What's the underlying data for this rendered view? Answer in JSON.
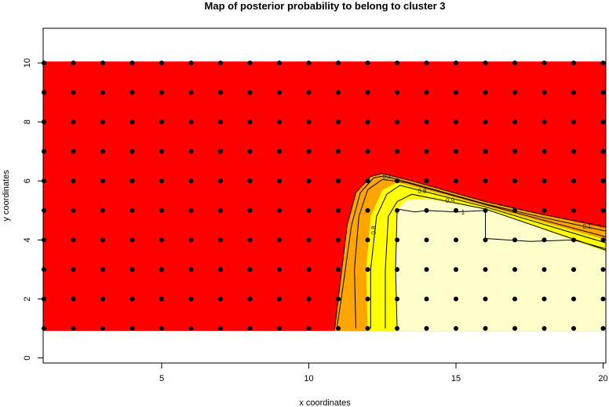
{
  "chart_data": {
    "type": "heatmap",
    "title": "Map of posterior probability to belong to cluster  3",
    "xlabel": "x coordinates",
    "ylabel": "y coordinates",
    "xlim": [
      1,
      20
    ],
    "ylim": [
      -0.17,
      11.2
    ],
    "xticks": [
      5,
      10,
      15,
      20
    ],
    "yticks": [
      0,
      2,
      4,
      6,
      8,
      10
    ],
    "grid_points": {
      "x": [
        1,
        2,
        3,
        4,
        5,
        6,
        7,
        8,
        9,
        10,
        11,
        12,
        13,
        14,
        15,
        16,
        17,
        18,
        19,
        20
      ],
      "y": [
        1,
        2,
        3,
        4,
        5,
        6,
        7,
        8,
        9,
        10
      ]
    },
    "colors": {
      "low": "#FF0000",
      "mid": "#FFA500",
      "high": "#FFFF00",
      "top": "#FFFFCC",
      "points": "#000000",
      "contours": "#000000"
    },
    "regions": [
      {
        "level": "low",
        "polygon": [
          [
            0.97,
            0.92
          ],
          [
            20.1,
            0.92
          ],
          [
            20.1,
            10.05
          ],
          [
            0.97,
            10.05
          ]
        ]
      },
      {
        "level": "mid",
        "polygon": [
          [
            10.9,
            1
          ],
          [
            11.0,
            2
          ],
          [
            11.3,
            4.5
          ],
          [
            11.6,
            5.6
          ],
          [
            12.1,
            6.15
          ],
          [
            12.5,
            6.25
          ],
          [
            13.5,
            6.0
          ],
          [
            16,
            5.3
          ],
          [
            18,
            4.85
          ],
          [
            20.1,
            4.4
          ],
          [
            20.1,
            0.92
          ],
          [
            10.88,
            0.92
          ]
        ]
      },
      {
        "level": "high",
        "polygon": [
          [
            12.0,
            0.92
          ],
          [
            11.95,
            3
          ],
          [
            12.1,
            4.8
          ],
          [
            12.5,
            5.7
          ],
          [
            13,
            5.95
          ],
          [
            16,
            5.15
          ],
          [
            20.1,
            4.0
          ],
          [
            20.1,
            0.92
          ]
        ]
      },
      {
        "level": "top",
        "polygon": [
          [
            13.0,
            0.92
          ],
          [
            12.95,
            3
          ],
          [
            13.0,
            5.05
          ],
          [
            13.3,
            5.35
          ],
          [
            14,
            5.4
          ],
          [
            16,
            5.05
          ],
          [
            20.1,
            3.6
          ],
          [
            20.1,
            0.92
          ]
        ]
      }
    ],
    "contours": [
      {
        "level": 0.1,
        "points": [
          [
            10.88,
            1
          ],
          [
            11.0,
            2
          ],
          [
            11.3,
            4.5
          ],
          [
            11.6,
            5.6
          ],
          [
            12.1,
            6.15
          ],
          [
            12.5,
            6.25
          ],
          [
            13.5,
            6.0
          ],
          [
            16,
            5.3
          ],
          [
            18,
            4.85
          ],
          [
            20.1,
            4.45
          ]
        ]
      },
      {
        "level": 0.2,
        "points": [
          [
            10.95,
            1
          ],
          [
            11.1,
            2
          ],
          [
            11.45,
            4.5
          ],
          [
            11.75,
            5.6
          ],
          [
            12.2,
            6.1
          ],
          [
            12.55,
            6.17
          ],
          [
            13.5,
            5.92
          ],
          [
            16,
            5.22
          ],
          [
            18,
            4.75
          ],
          [
            20.1,
            4.3
          ]
        ]
      },
      {
        "level": 0.5,
        "points": [
          [
            11.6,
            1
          ],
          [
            11.55,
            3
          ],
          [
            11.7,
            4.8
          ],
          [
            12.0,
            5.7
          ],
          [
            12.5,
            6.05
          ],
          [
            13.3,
            5.95
          ],
          [
            16,
            5.2
          ],
          [
            20.1,
            4.1
          ]
        ]
      },
      {
        "level": 0.8,
        "points": [
          [
            12.1,
            1
          ],
          [
            12.1,
            3
          ],
          [
            12.3,
            4.8
          ],
          [
            12.65,
            5.55
          ],
          [
            13.1,
            5.85
          ],
          [
            16,
            5.12
          ],
          [
            20.1,
            3.9
          ]
        ]
      },
      {
        "level": 0.9,
        "points": [
          [
            12.6,
            1
          ],
          [
            12.6,
            3
          ],
          [
            12.7,
            4.8
          ],
          [
            13.0,
            5.3
          ],
          [
            13.5,
            5.55
          ],
          [
            16,
            5.05
          ],
          [
            20.1,
            3.65
          ]
        ]
      },
      {
        "level": 1,
        "points": [
          [
            13.0,
            1
          ],
          [
            12.95,
            3
          ],
          [
            13.0,
            5.05
          ],
          [
            13.6,
            4.95
          ],
          [
            14,
            5.0
          ],
          [
            15,
            4.95
          ],
          [
            16,
            5.0
          ],
          [
            16,
            4.05
          ],
          [
            17.5,
            3.95
          ],
          [
            19,
            4.0
          ],
          [
            20.1,
            3.7
          ]
        ]
      }
    ],
    "contour_labels": [
      {
        "text": "0.1",
        "x": 19.45,
        "y": 4.46
      },
      {
        "text": "0.2",
        "x": 12.65,
        "y": 6.17
      },
      {
        "text": "0.8",
        "x": 12.2,
        "y": 4.33,
        "vertical": true
      },
      {
        "text": "0.8",
        "x": 13.85,
        "y": 5.66
      },
      {
        "text": "0.9",
        "x": 14.8,
        "y": 5.34
      },
      {
        "text": "1",
        "x": 15.24,
        "y": 4.94
      }
    ]
  }
}
